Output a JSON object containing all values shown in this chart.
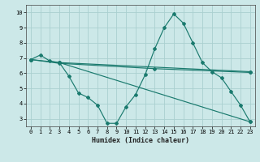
{
  "xlabel": "Humidex (Indice chaleur)",
  "bg_color": "#cce8e8",
  "grid_color": "#aad0d0",
  "line_color": "#1a7a6e",
  "xlim": [
    -0.5,
    23.5
  ],
  "ylim": [
    2.5,
    10.5
  ],
  "yticks": [
    3,
    4,
    5,
    6,
    7,
    8,
    9,
    10
  ],
  "xticks": [
    0,
    1,
    2,
    3,
    4,
    5,
    6,
    7,
    8,
    9,
    10,
    11,
    12,
    13,
    14,
    15,
    16,
    17,
    18,
    19,
    20,
    21,
    22,
    23
  ],
  "line1_x": [
    0,
    1,
    2,
    3,
    4,
    5,
    6,
    7,
    8,
    9,
    10,
    11,
    12,
    13,
    14,
    15,
    16,
    17,
    18,
    19,
    20,
    21,
    22,
    23
  ],
  "line1_y": [
    6.9,
    7.2,
    6.8,
    6.7,
    5.8,
    4.7,
    4.4,
    3.9,
    2.7,
    2.7,
    3.8,
    4.6,
    5.9,
    7.6,
    9.0,
    9.9,
    9.3,
    8.0,
    6.7,
    6.1,
    5.7,
    4.8,
    3.9,
    2.8
  ],
  "line2_x": [
    0,
    3,
    23
  ],
  "line2_y": [
    6.9,
    6.7,
    6.1
  ],
  "line3_x": [
    3,
    23
  ],
  "line3_y": [
    6.7,
    2.8
  ],
  "line4_x": [
    0,
    3,
    13,
    23
  ],
  "line4_y": [
    6.9,
    6.65,
    6.3,
    6.05
  ]
}
